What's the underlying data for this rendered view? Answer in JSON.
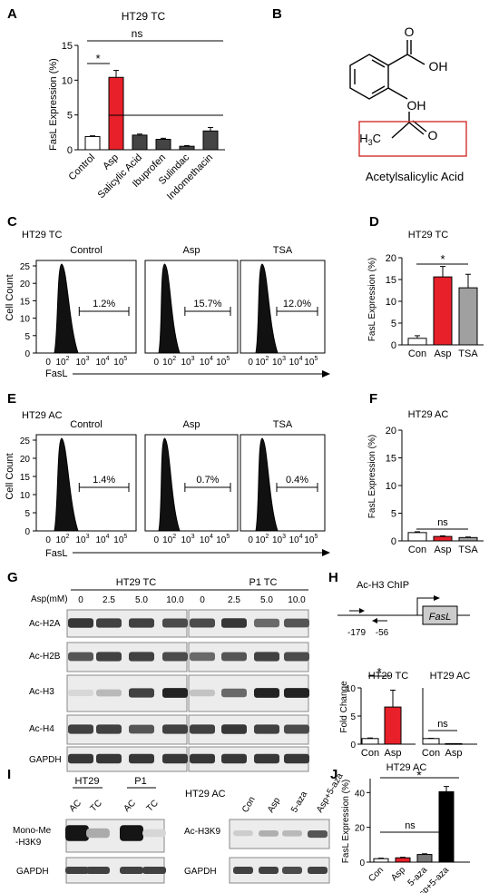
{
  "panels": {
    "A": {
      "letter": "A",
      "title": "HT29 TC",
      "ylabel": "FasL Expression (%)",
      "ns": "ns",
      "star": "*",
      "chart_data": {
        "type": "bar",
        "categories": [
          "Control",
          "Asp",
          "Salicylic Acid",
          "Ibuprofen",
          "Sulindac",
          "Indomethacin"
        ],
        "values": [
          1.9,
          10.4,
          2.1,
          1.5,
          0.5,
          2.7
        ],
        "errors": [
          0.1,
          1.0,
          0.15,
          0.15,
          0.1,
          0.5
        ],
        "colors": [
          "#ffffff",
          "#e8202a",
          "#444444",
          "#444444",
          "#444444",
          "#444444"
        ],
        "yticks": [
          "0",
          "5",
          "10",
          "15"
        ],
        "ylim": [
          0,
          15
        ]
      }
    },
    "B": {
      "letter": "B",
      "oh_top": "OH",
      "o_top": "O",
      "oh_mid": "OH",
      "h3c": "H",
      "sub3": "3",
      "c": "C",
      "o_box": "O",
      "caption": "Acetylsalicylic Acid",
      "box_color": "#d0312d"
    },
    "C": {
      "letter": "C",
      "title": "HT29 TC",
      "ylabel": "Cell Count",
      "xlabel": "FasL",
      "yticks": [
        "0",
        "5",
        "10",
        "15",
        "20",
        "25"
      ],
      "xticks": [
        "0",
        "10",
        "2",
        "10",
        "3",
        "10",
        "4",
        "10",
        "5"
      ],
      "histograms": [
        {
          "label": "Control",
          "pct": "1.2%"
        },
        {
          "label": "Asp",
          "pct": "15.7%"
        },
        {
          "label": "TSA",
          "pct": "12.0%"
        }
      ]
    },
    "D": {
      "letter": "D",
      "title": "HT29 TC",
      "ylabel": "FasL Expression (%)",
      "star": "*",
      "chart_data": {
        "type": "bar",
        "categories": [
          "Con",
          "Asp",
          "TSA"
        ],
        "values": [
          1.5,
          15.6,
          13.1
        ],
        "errors": [
          0.6,
          2.4,
          3.1
        ],
        "colors": [
          "#ffffff",
          "#e8202a",
          "#a0a0a0"
        ],
        "yticks": [
          "0",
          "5",
          "10",
          "15",
          "20"
        ],
        "ylim": [
          0,
          20
        ]
      }
    },
    "E": {
      "letter": "E",
      "title": "HT29 AC",
      "ylabel": "Cell Count",
      "xlabel": "FasL",
      "yticks": [
        "0",
        "5",
        "10",
        "15",
        "20",
        "25"
      ],
      "xticks": [
        "0",
        "10",
        "2",
        "10",
        "3",
        "10",
        "4",
        "10",
        "5"
      ],
      "histograms": [
        {
          "label": "Control",
          "pct": "1.4%"
        },
        {
          "label": "Asp",
          "pct": "0.7%"
        },
        {
          "label": "TSA",
          "pct": "0.4%"
        }
      ]
    },
    "F": {
      "letter": "F",
      "title": "HT29 AC",
      "ylabel": "FasL Expression (%)",
      "ns": "ns",
      "chart_data": {
        "type": "bar",
        "categories": [
          "Con",
          "Asp",
          "TSA"
        ],
        "values": [
          1.5,
          0.8,
          0.6
        ],
        "errors": [
          0.15,
          0.1,
          0.1
        ],
        "colors": [
          "#ffffff",
          "#e8202a",
          "#a0a0a0"
        ],
        "yticks": [
          "0",
          "5",
          "10",
          "15",
          "20"
        ],
        "ylim": [
          0,
          20
        ]
      }
    },
    "G": {
      "letter": "G",
      "group1": "HT29 TC",
      "group2": "P1 TC",
      "asp_label": "Asp(mM)",
      "doses": [
        "0",
        "2.5",
        "5.0",
        "10.0"
      ],
      "rows": [
        "Ac-H2A",
        "Ac-H2B",
        "Ac-H3",
        "Ac-H4",
        "GAPDH"
      ]
    },
    "H": {
      "letter": "H",
      "chip_title": "Ac-H3 ChIP",
      "gene": "FasL",
      "pos1": "-179",
      "pos2": "-56",
      "ylabel": "Fold Change",
      "star": "*",
      "ns": "ns",
      "charts": [
        {
          "title": "HT29 TC",
          "chart_data": {
            "type": "bar",
            "categories": [
              "Con",
              "Asp"
            ],
            "values": [
              1.0,
              6.6
            ],
            "errors": [
              0.1,
              3.0
            ],
            "colors": [
              "#ffffff",
              "#e8202a"
            ],
            "yticks": [
              "0",
              "5",
              "10"
            ],
            "ylim": [
              0,
              10
            ]
          }
        },
        {
          "title": "HT29 AC",
          "chart_data": {
            "type": "bar",
            "categories": [
              "Con",
              "Asp"
            ],
            "values": [
              1.0,
              0.1
            ],
            "errors": [
              0.05,
              0.0
            ],
            "colors": [
              "#ffffff",
              "#e8202a"
            ],
            "yticks": [
              "0",
              "5",
              "10"
            ],
            "ylim": [
              0,
              10
            ]
          }
        }
      ]
    },
    "I": {
      "letter": "I",
      "left": {
        "groups": [
          "HT29",
          "P1"
        ],
        "lanes": [
          "AC",
          "TC",
          "AC",
          "TC"
        ],
        "row1_a": "Mono-Me",
        "row1_b": "-H3K9",
        "row2": "GAPDH"
      },
      "right": {
        "title": "HT29 AC",
        "lanes": [
          "Con",
          "Asp",
          "5-aza",
          "Asp+5-aza"
        ],
        "row1": "Ac-H3K9",
        "row2": "GAPDH"
      }
    },
    "J": {
      "letter": "J",
      "title": "HT29 AC",
      "ylabel": "FasL Expression (%)",
      "ns": "ns",
      "star": "*",
      "chart_data": {
        "type": "bar",
        "categories": [
          "Con",
          "Asp",
          "5-aza",
          "Asp+5-aza"
        ],
        "values": [
          2.0,
          2.5,
          4.4,
          40.5
        ],
        "errors": [
          0.3,
          0.3,
          0.4,
          3.0
        ],
        "colors": [
          "#ffffff",
          "#e8202a",
          "#777777",
          "#000000"
        ],
        "yticks": [
          "0",
          "20",
          "40"
        ],
        "ylim": [
          0,
          48
        ]
      }
    }
  }
}
